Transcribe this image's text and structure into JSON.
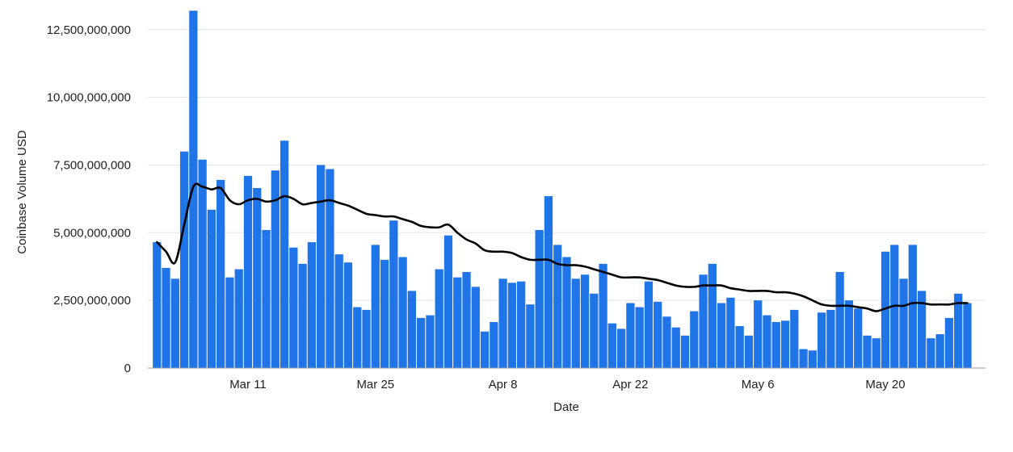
{
  "chart_data": {
    "type": "bar",
    "title": "",
    "xlabel": "Date",
    "ylabel": "Coinbase Volume USD",
    "ylim": [
      0,
      13000000000
    ],
    "y_ticks": [
      0,
      2500000000,
      5000000000,
      7500000000,
      10000000000,
      12500000000
    ],
    "y_tick_labels": [
      "0",
      "2,500,000,000",
      "5,000,000,000",
      "7,500,000,000",
      "10,000,000,000",
      "12,500,000,000"
    ],
    "x_range": [
      "2024-02-29",
      "2024-05-31"
    ],
    "x_ticks": [
      {
        "date": "2024-03-11",
        "label": "Mar 11"
      },
      {
        "date": "2024-03-25",
        "label": "Mar 25"
      },
      {
        "date": "2024-04-08",
        "label": "Apr 8"
      },
      {
        "date": "2024-04-22",
        "label": "Apr 22"
      },
      {
        "date": "2024-05-06",
        "label": "May 6"
      },
      {
        "date": "2024-05-20",
        "label": "May 20"
      }
    ],
    "grid": true,
    "legend": "none",
    "bar_color": "#1f74e8",
    "line_color": "#000000",
    "series": [
      {
        "type": "bar",
        "start_date": "2024-03-01",
        "values": [
          4650000000,
          3700000000,
          3300000000,
          8000000000,
          13200000000,
          7700000000,
          5850000000,
          6950000000,
          3350000000,
          3650000000,
          7100000000,
          6650000000,
          5100000000,
          7300000000,
          8400000000,
          4450000000,
          3850000000,
          4650000000,
          7500000000,
          7350000000,
          4200000000,
          3900000000,
          2250000000,
          2150000000,
          4550000000,
          4000000000,
          5450000000,
          4100000000,
          2850000000,
          1850000000,
          1950000000,
          3650000000,
          4900000000,
          3350000000,
          3550000000,
          3000000000,
          1350000000,
          1700000000,
          3300000000,
          3150000000,
          3200000000,
          2350000000,
          5100000000,
          6350000000,
          4550000000,
          4100000000,
          3300000000,
          3450000000,
          2750000000,
          3850000000,
          1650000000,
          1450000000,
          2400000000,
          2250000000,
          3200000000,
          2450000000,
          1900000000,
          1500000000,
          1200000000,
          2100000000,
          3450000000,
          3850000000,
          2400000000,
          2600000000,
          1550000000,
          1200000000,
          2500000000,
          1950000000,
          1700000000,
          1750000000,
          2150000000,
          700000000,
          650000000,
          2050000000,
          2150000000,
          3550000000,
          2500000000,
          2200000000,
          1200000000,
          1100000000,
          4300000000,
          4550000000,
          3300000000,
          4550000000,
          2850000000,
          1100000000,
          1250000000,
          1850000000,
          2750000000,
          2400000000
        ]
      },
      {
        "type": "line",
        "start_date": "2024-03-01",
        "values": [
          4650000000,
          4300000000,
          3900000000,
          5300000000,
          6700000000,
          6700000000,
          6600000000,
          6650000000,
          6200000000,
          6050000000,
          6200000000,
          6250000000,
          6150000000,
          6200000000,
          6350000000,
          6250000000,
          6050000000,
          6100000000,
          6150000000,
          6200000000,
          6100000000,
          6000000000,
          5850000000,
          5700000000,
          5650000000,
          5600000000,
          5600000000,
          5500000000,
          5400000000,
          5250000000,
          5200000000,
          5200000000,
          5300000000,
          5000000000,
          4750000000,
          4600000000,
          4350000000,
          4300000000,
          4300000000,
          4250000000,
          4100000000,
          4000000000,
          4000000000,
          4000000000,
          3850000000,
          3800000000,
          3800000000,
          3750000000,
          3650000000,
          3550000000,
          3450000000,
          3350000000,
          3350000000,
          3350000000,
          3300000000,
          3250000000,
          3150000000,
          3050000000,
          3000000000,
          3000000000,
          3050000000,
          3050000000,
          3050000000,
          2950000000,
          2900000000,
          2850000000,
          2850000000,
          2850000000,
          2800000000,
          2800000000,
          2750000000,
          2650000000,
          2500000000,
          2350000000,
          2300000000,
          2300000000,
          2300000000,
          2250000000,
          2200000000,
          2100000000,
          2200000000,
          2300000000,
          2300000000,
          2400000000,
          2400000000,
          2350000000,
          2350000000,
          2350000000,
          2400000000,
          2400000000
        ]
      }
    ]
  }
}
